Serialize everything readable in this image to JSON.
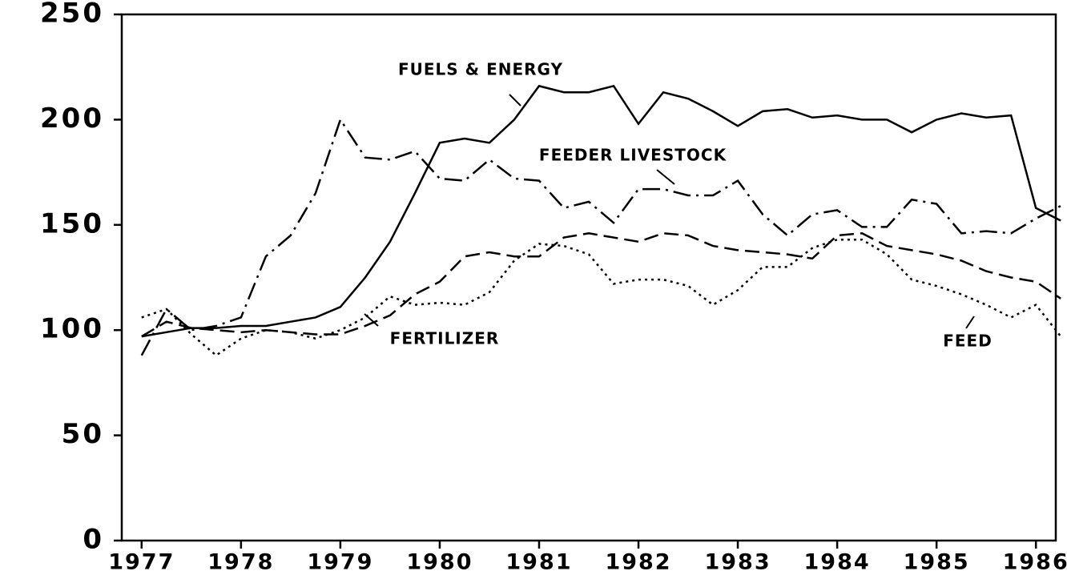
{
  "chart_data": {
    "type": "line",
    "x": [
      1977,
      1977.25,
      1977.5,
      1977.75,
      1978,
      1978.25,
      1978.5,
      1978.75,
      1979,
      1979.25,
      1979.5,
      1979.75,
      1980,
      1980.25,
      1980.5,
      1980.75,
      1981,
      1981.25,
      1981.5,
      1981.75,
      1982,
      1982.25,
      1982.5,
      1982.75,
      1983,
      1983.25,
      1983.5,
      1983.75,
      1984,
      1984.25,
      1984.5,
      1984.75,
      1985,
      1985.25,
      1985.5,
      1985.75,
      1986,
      1986.25
    ],
    "series": [
      {
        "name": "FUELS & ENERGY",
        "color": "#000000",
        "style": "solid",
        "values": [
          97,
          99,
          101,
          101,
          102,
          102,
          104,
          106,
          111,
          125,
          142,
          165,
          189,
          191,
          189,
          200,
          216,
          213,
          213,
          216,
          198,
          213,
          210,
          204,
          197,
          204,
          205,
          201,
          202,
          200,
          200,
          194,
          200,
          203,
          201,
          202,
          158,
          152
        ]
      },
      {
        "name": "FEEDER LIVESTOCK",
        "color": "#000000",
        "style": "dashdot",
        "values": [
          88,
          110,
          100,
          102,
          106,
          135,
          145,
          165,
          200,
          182,
          181,
          185,
          172,
          171,
          181,
          172,
          171,
          158,
          161,
          151,
          167,
          167,
          164,
          164,
          171,
          155,
          145,
          155,
          157,
          149,
          149,
          162,
          160,
          146,
          147,
          146,
          153,
          159
        ]
      },
      {
        "name": "FERTILIZER",
        "color": "#000000",
        "style": "dashed",
        "values": [
          97,
          104,
          101,
          100,
          99,
          100,
          99,
          98,
          98,
          102,
          107,
          117,
          123,
          135,
          137,
          135,
          135,
          144,
          146,
          144,
          142,
          146,
          145,
          140,
          138,
          137,
          136,
          134,
          145,
          146,
          140,
          138,
          136,
          133,
          128,
          125,
          123,
          115
        ]
      },
      {
        "name": "FEED",
        "color": "#000000",
        "style": "dotted",
        "values": [
          106,
          110,
          98,
          88,
          96,
          100,
          99,
          96,
          100,
          106,
          116,
          112,
          113,
          112,
          118,
          133,
          141,
          140,
          136,
          122,
          124,
          124,
          121,
          112,
          119,
          130,
          130,
          139,
          143,
          143,
          136,
          124,
          121,
          117,
          112,
          106,
          112,
          97
        ]
      }
    ],
    "xlim": [
      1976.8,
      1986.2
    ],
    "xticks": [
      1977,
      1978,
      1979,
      1980,
      1981,
      1982,
      1983,
      1984,
      1985,
      1986
    ],
    "ylim": [
      0,
      250
    ],
    "yticks": [
      0,
      50,
      100,
      150,
      200,
      250
    ]
  }
}
